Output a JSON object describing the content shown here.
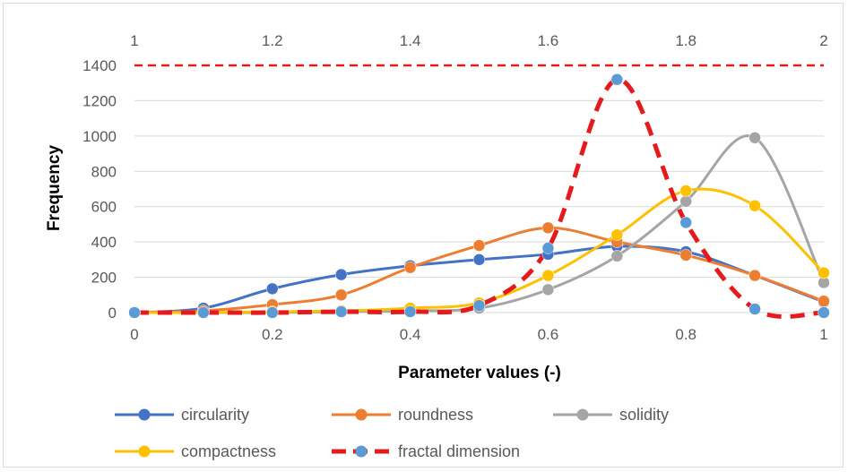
{
  "chart_data": {
    "type": "line",
    "xlabel": "Parameter values (-)",
    "ylabel": "Frequency",
    "xlim": [
      0,
      1
    ],
    "ylim": [
      0,
      1400
    ],
    "x2lim": [
      1,
      2
    ],
    "x_ticks": [
      "0",
      "0.2",
      "0.4",
      "0.6",
      "0.8",
      "1"
    ],
    "x2_ticks": [
      "1",
      "1.2",
      "1.4",
      "1.6",
      "1.8",
      "2"
    ],
    "y_ticks": [
      "0",
      "200",
      "400",
      "600",
      "800",
      "1000",
      "1200",
      "1400"
    ],
    "grid": "horizontal",
    "legend_position": "bottom",
    "x": [
      0,
      0.1,
      0.2,
      0.3,
      0.4,
      0.5,
      0.6,
      0.7,
      0.8,
      0.9,
      1.0
    ],
    "series": [
      {
        "name": "circularity",
        "color": "#4472c4",
        "style": "solid",
        "values": [
          0,
          25,
          135,
          215,
          265,
          300,
          330,
          375,
          345,
          210,
          60
        ]
      },
      {
        "name": "roundness",
        "color": "#ed7d31",
        "style": "solid",
        "values": [
          0,
          10,
          45,
          100,
          255,
          380,
          480,
          400,
          325,
          210,
          65
        ]
      },
      {
        "name": "solidity",
        "color": "#a5a5a5",
        "style": "solid",
        "values": [
          0,
          0,
          0,
          5,
          10,
          25,
          130,
          320,
          630,
          990,
          170
        ]
      },
      {
        "name": "compactness",
        "color": "#ffc000",
        "style": "solid",
        "values": [
          0,
          0,
          5,
          10,
          25,
          55,
          210,
          440,
          690,
          605,
          225
        ]
      },
      {
        "name": "fractal dimension",
        "axis": "secondary",
        "color": "#e41a1c",
        "marker_color": "#5b9bd5",
        "style": "dashed",
        "x": [
          1.0,
          1.1,
          1.2,
          1.3,
          1.4,
          1.5,
          1.6,
          1.7,
          1.8,
          1.9,
          2.0
        ],
        "values": [
          0,
          0,
          0,
          5,
          5,
          40,
          365,
          1320,
          510,
          20,
          0
        ]
      }
    ],
    "reference_line": {
      "y": 1400,
      "color": "#e41a1c",
      "style": "dashed"
    }
  }
}
